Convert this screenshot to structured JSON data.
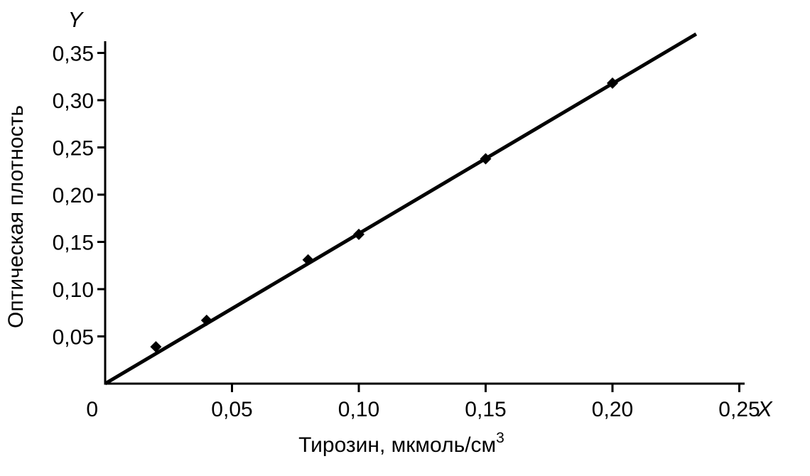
{
  "chart_data": {
    "type": "scatter",
    "title": "",
    "xlabel": "Тирозин, мкмоль/см",
    "xlabel_sup": "3",
    "ylabel": "Оптическая плотность",
    "x_axis_letter": "X",
    "y_axis_letter": "Y",
    "origin_label": "0",
    "xlim": [
      0,
      0.25
    ],
    "ylim": [
      0,
      0.37
    ],
    "grid": false,
    "legend": "none",
    "x_ticks": [
      0.05,
      0.1,
      0.15,
      0.2,
      0.25
    ],
    "x_tick_labels": [
      "0,05",
      "0,10",
      "0,15",
      "0,20",
      "0,25"
    ],
    "y_ticks": [
      0.05,
      0.1,
      0.15,
      0.2,
      0.25,
      0.3,
      0.35
    ],
    "y_tick_labels": [
      "0,05",
      "0,10",
      "0,15",
      "0,20",
      "0,25",
      "0,30",
      "0,35"
    ],
    "series_name": "calibration-points",
    "marker_shape": "diamond",
    "marker_color": "#000000",
    "line_color": "#000000",
    "points": [
      [
        0.02,
        0.039
      ],
      [
        0.04,
        0.067
      ],
      [
        0.08,
        0.131
      ],
      [
        0.1,
        0.158
      ],
      [
        0.15,
        0.238
      ],
      [
        0.2,
        0.318
      ]
    ],
    "fit_line": [
      [
        0,
        0
      ],
      [
        0.233,
        0.37
      ]
    ]
  }
}
